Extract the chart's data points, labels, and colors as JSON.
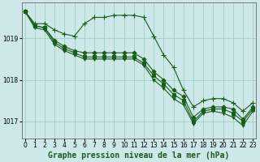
{
  "title": "Graphe pression niveau de la mer (hPa)",
  "xlabel_ticks": [
    0,
    1,
    2,
    3,
    4,
    5,
    6,
    7,
    8,
    9,
    10,
    11,
    12,
    13,
    14,
    15,
    16,
    17,
    18,
    19,
    20,
    21,
    22,
    23
  ],
  "yticks": [
    1017,
    1018,
    1019
  ],
  "ylim": [
    1016.6,
    1019.85
  ],
  "xlim": [
    -0.3,
    23.3
  ],
  "background_color": "#cce8e8",
  "grid_color": "#99ccbb",
  "line_color": "#1a5c1a",
  "lines": [
    {
      "x": [
        0,
        1,
        2,
        3,
        4,
        5,
        6,
        7,
        8,
        9,
        10,
        11,
        12,
        13,
        14,
        15,
        16,
        17,
        18,
        19,
        20,
        21,
        22,
        23
      ],
      "y": [
        1019.65,
        1019.35,
        1019.35,
        1019.2,
        1019.1,
        1019.05,
        1019.35,
        1019.5,
        1019.5,
        1019.55,
        1019.55,
        1019.55,
        1019.5,
        1019.05,
        1018.6,
        1018.3,
        1017.75,
        1017.35,
        1017.5,
        1017.55,
        1017.55,
        1017.45,
        1017.25,
        1017.45
      ],
      "marker": "+",
      "markersize": 4,
      "markevery": 1
    },
    {
      "x": [
        0,
        1,
        2,
        3,
        4,
        5,
        6,
        7,
        8,
        9,
        10,
        11,
        12,
        13,
        14,
        15,
        16,
        17,
        18,
        19,
        20,
        21,
        22,
        23
      ],
      "y": [
        1019.65,
        1019.3,
        1019.25,
        1018.95,
        1018.8,
        1018.7,
        1018.65,
        1018.65,
        1018.65,
        1018.65,
        1018.65,
        1018.65,
        1018.5,
        1018.2,
        1018.0,
        1017.75,
        1017.6,
        1017.1,
        1017.3,
        1017.35,
        1017.35,
        1017.3,
        1017.05,
        1017.35
      ],
      "marker": "D",
      "markersize": 2.5,
      "markevery": 1
    },
    {
      "x": [
        0,
        1,
        2,
        3,
        4,
        5,
        6,
        7,
        8,
        9,
        10,
        11,
        12,
        13,
        14,
        15,
        16,
        17,
        18,
        19,
        20,
        21,
        22,
        23
      ],
      "y": [
        1019.65,
        1019.3,
        1019.25,
        1018.9,
        1018.75,
        1018.65,
        1018.55,
        1018.55,
        1018.55,
        1018.55,
        1018.55,
        1018.55,
        1018.4,
        1018.1,
        1017.9,
        1017.65,
        1017.5,
        1017.0,
        1017.25,
        1017.3,
        1017.3,
        1017.2,
        1017.0,
        1017.3
      ],
      "marker": "s",
      "markersize": 2.5,
      "markevery": 1
    },
    {
      "x": [
        0,
        1,
        2,
        3,
        4,
        5,
        6,
        7,
        8,
        9,
        10,
        11,
        12,
        13,
        14,
        15,
        16,
        17,
        18,
        19,
        20,
        21,
        22,
        23
      ],
      "y": [
        1019.65,
        1019.25,
        1019.2,
        1018.85,
        1018.7,
        1018.6,
        1018.5,
        1018.5,
        1018.5,
        1018.5,
        1018.5,
        1018.5,
        1018.35,
        1018.0,
        1017.8,
        1017.55,
        1017.4,
        1016.95,
        1017.2,
        1017.25,
        1017.2,
        1017.1,
        1016.9,
        1017.25
      ],
      "marker": "v",
      "markersize": 2.5,
      "markevery": 1
    }
  ],
  "title_fontsize": 7,
  "tick_fontsize": 5.5
}
